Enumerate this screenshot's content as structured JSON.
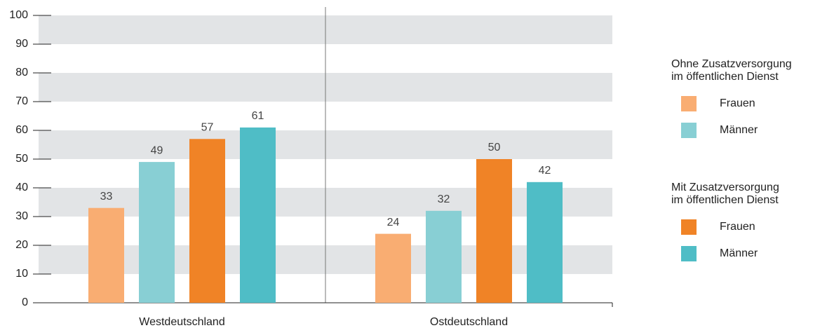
{
  "chart_data": {
    "type": "bar",
    "categories": [
      "Westdeutschland",
      "Ostdeutschland"
    ],
    "series_groups": [
      {
        "title": [
          "Ohne Zusatzversorgung",
          "im öffentlichen Dienst"
        ],
        "series": [
          {
            "name": "Frauen",
            "color": "#f9ad72",
            "values": [
              33,
              24
            ]
          },
          {
            "name": "Männer",
            "color": "#88cfd4",
            "values": [
              49,
              32
            ]
          }
        ]
      },
      {
        "title": [
          "Mit Zusatzversorgung",
          "im öffentlichen Dienst"
        ],
        "series": [
          {
            "name": "Frauen",
            "color": "#f08326",
            "values": [
              57,
              50
            ]
          },
          {
            "name": "Männer",
            "color": "#4fbdc6",
            "values": [
              61,
              42
            ]
          }
        ]
      }
    ],
    "ylim": [
      0,
      100
    ],
    "yticks": [
      0,
      10,
      20,
      30,
      40,
      50,
      60,
      70,
      80,
      90,
      100
    ],
    "grid": true,
    "legend": "right"
  }
}
